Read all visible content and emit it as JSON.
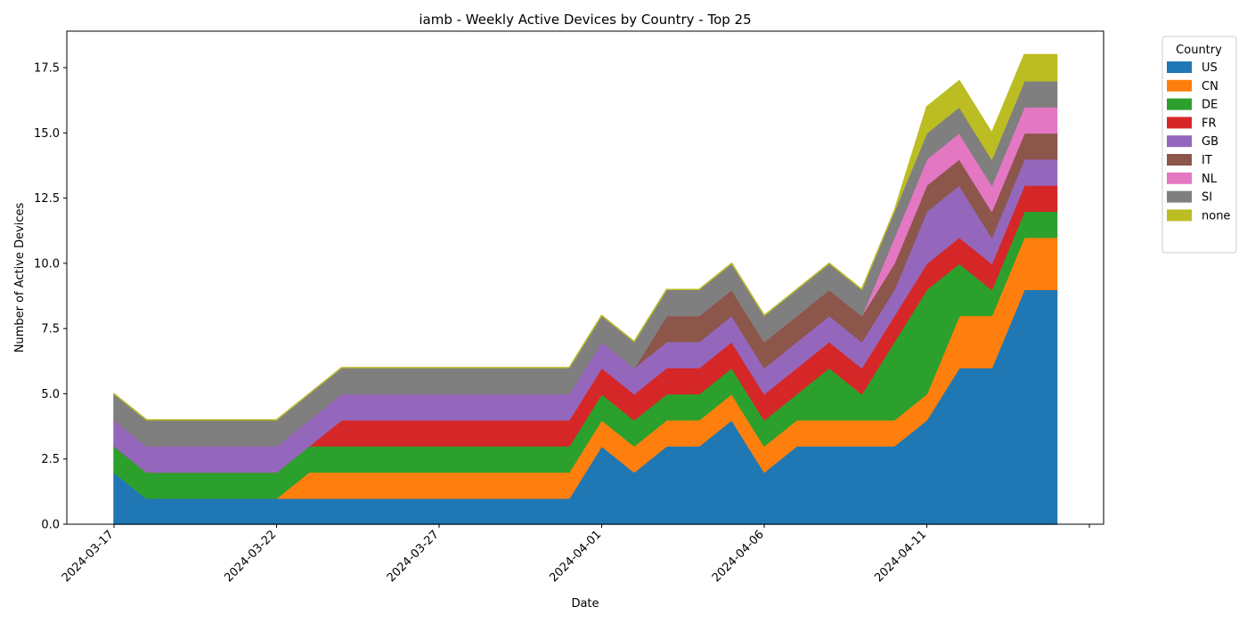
{
  "chart_data": {
    "type": "area",
    "stacked": true,
    "title": "iamb - Weekly Active Devices by Country - Top 25",
    "xlabel": "Date",
    "ylabel": "Number of Active Devices",
    "xlim": [
      "2024-03-17",
      "2024-04-16"
    ],
    "ylim": [
      0,
      18.9
    ],
    "x_tick_labels": [
      "2024-03-17",
      "2024-03-22",
      "2024-03-27",
      "2024-04-01",
      "2024-04-06",
      "2024-04-11"
    ],
    "y_tick_labels": [
      "0.0",
      "2.5",
      "5.0",
      "7.5",
      "10.0",
      "12.5",
      "15.0",
      "17.5"
    ],
    "grid": false,
    "legend": {
      "title": "Country",
      "placement": "outside top-right"
    },
    "x": [
      "2024-03-17",
      "2024-03-18",
      "2024-03-22",
      "2024-03-23",
      "2024-03-24",
      "2024-03-31",
      "2024-04-01",
      "2024-04-02",
      "2024-04-03",
      "2024-04-04",
      "2024-04-05",
      "2024-04-06",
      "2024-04-07",
      "2024-04-08",
      "2024-04-09",
      "2024-04-10",
      "2024-04-11",
      "2024-04-12",
      "2024-04-13",
      "2024-04-14",
      "2024-04-15"
    ],
    "series": [
      {
        "name": "US",
        "color": "#1f77b4",
        "values": [
          2,
          1,
          1,
          1,
          1,
          1,
          3,
          2,
          3,
          3,
          4,
          2,
          3,
          3,
          3,
          3,
          4,
          6,
          6,
          9,
          9
        ]
      },
      {
        "name": "CN",
        "color": "#ff7f0e",
        "values": [
          0,
          0,
          0,
          1,
          1,
          1,
          1,
          1,
          1,
          1,
          1,
          1,
          1,
          1,
          1,
          1,
          1,
          2,
          2,
          2,
          2
        ]
      },
      {
        "name": "DE",
        "color": "#2ca02c",
        "values": [
          1,
          1,
          1,
          1,
          1,
          1,
          1,
          1,
          1,
          1,
          1,
          1,
          1,
          2,
          1,
          3,
          4,
          2,
          1,
          1,
          1
        ]
      },
      {
        "name": "FR",
        "color": "#d62728",
        "values": [
          0,
          0,
          0,
          0,
          1,
          1,
          1,
          1,
          1,
          1,
          1,
          1,
          1,
          1,
          1,
          1,
          1,
          1,
          1,
          1,
          1
        ]
      },
      {
        "name": "GB",
        "color": "#9467bd",
        "values": [
          1,
          1,
          1,
          1,
          1,
          1,
          1,
          1,
          1,
          1,
          1,
          1,
          1,
          1,
          1,
          1,
          2,
          2,
          1,
          1,
          1
        ]
      },
      {
        "name": "IT",
        "color": "#8c564b",
        "values": [
          0,
          0,
          0,
          0,
          0,
          0,
          0,
          0,
          1,
          1,
          1,
          1,
          1,
          1,
          1,
          1,
          1,
          1,
          1,
          1,
          1
        ]
      },
      {
        "name": "NL",
        "color": "#e377c2",
        "values": [
          0,
          0,
          0,
          0,
          0,
          0,
          0,
          0,
          0,
          0,
          0,
          0,
          0,
          0,
          0,
          1,
          1,
          1,
          1,
          1,
          1
        ]
      },
      {
        "name": "SI",
        "color": "#7f7f7f",
        "values": [
          1,
          1,
          1,
          1,
          1,
          1,
          1,
          1,
          1,
          1,
          1,
          1,
          1,
          1,
          1,
          1,
          1,
          1,
          1,
          1,
          1
        ]
      },
      {
        "name": "none",
        "color": "#bcbd22",
        "values": [
          0,
          0,
          0,
          0,
          0,
          0,
          0,
          0,
          0,
          0,
          0,
          0,
          0,
          0,
          0,
          0,
          1,
          1,
          1,
          1,
          1
        ]
      }
    ]
  }
}
